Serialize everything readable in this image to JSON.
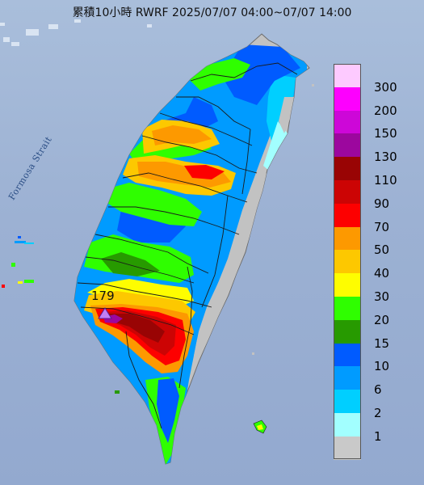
{
  "title": "累積10小時 RWRF 2025/07/07 04:00~07/07 14:00",
  "strait_label": "Formosa Strait",
  "peak": {
    "label": "179",
    "marker_color": "#c27ef5"
  },
  "legend": [
    {
      "label": "300",
      "color": "#fdcaff"
    },
    {
      "label": "200",
      "color": "#fd00fe"
    },
    {
      "label": "150",
      "color": "#cd07d8"
    },
    {
      "label": "130",
      "color": "#9c079e"
    },
    {
      "label": "110",
      "color": "#990404"
    },
    {
      "label": "90",
      "color": "#cc0404"
    },
    {
      "label": "70",
      "color": "#fd0000"
    },
    {
      "label": "50",
      "color": "#fd9900"
    },
    {
      "label": "40",
      "color": "#fdc800"
    },
    {
      "label": "30",
      "color": "#fefd00"
    },
    {
      "label": "20",
      "color": "#2ffe00"
    },
    {
      "label": "15",
      "color": "#279a00"
    },
    {
      "label": "10",
      "color": "#005bff"
    },
    {
      "label": "6",
      "color": "#009bff"
    },
    {
      "label": "2",
      "color": "#00cfff"
    },
    {
      "label": "1",
      "color": "#a2ffff"
    },
    {
      "label": "",
      "color": "#c9c9c9"
    }
  ],
  "colors": {
    "sea": "#a3b9d8",
    "land_no_rain": "#c2c2c2",
    "county_border": "#1a1a1a"
  }
}
